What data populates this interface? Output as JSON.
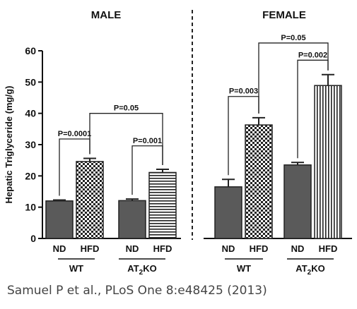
{
  "chart_data": {
    "type": "bar",
    "ylabel": "Hepatic Triglyceride (mg/g)",
    "ylim": [
      0,
      60
    ],
    "yticks": [
      0,
      10,
      20,
      30,
      40,
      50,
      60
    ],
    "panels": [
      {
        "title": "MALE",
        "groups": [
          {
            "label": "WT",
            "bars": [
              {
                "label": "ND",
                "value": 12.0,
                "error": 0.3
              },
              {
                "label": "HFD",
                "value": 24.6,
                "error": 1.0
              }
            ]
          },
          {
            "label": "AT2KO",
            "bars": [
              {
                "label": "ND",
                "value": 12.1,
                "error": 0.5
              },
              {
                "label": "HFD",
                "value": 21.1,
                "error": 1.0
              }
            ]
          }
        ],
        "comparisons": [
          {
            "text": "P=0.0001",
            "from": [
              0,
              0
            ],
            "to": [
              0,
              1
            ],
            "y": 31.8
          },
          {
            "text": "P=0.001",
            "from": [
              1,
              0
            ],
            "to": [
              1,
              1
            ],
            "y": 29.6
          },
          {
            "text": "P=0.05",
            "from": [
              0,
              1
            ],
            "to": [
              1,
              1
            ],
            "y": 40.0
          }
        ]
      },
      {
        "title": "FEMALE",
        "groups": [
          {
            "label": "WT",
            "bars": [
              {
                "label": "ND",
                "value": 16.5,
                "error": 2.4
              },
              {
                "label": "HFD",
                "value": 36.3,
                "error": 2.3
              }
            ]
          },
          {
            "label": "AT2KO",
            "bars": [
              {
                "label": "ND",
                "value": 23.5,
                "error": 0.8
              },
              {
                "label": "HFD",
                "value": 48.9,
                "error": 3.5
              }
            ]
          }
        ],
        "comparisons": [
          {
            "text": "P=0.003",
            "from": [
              0,
              0
            ],
            "to": [
              0,
              1
            ],
            "y": 45.4
          },
          {
            "text": "P=0.002",
            "from": [
              1,
              0
            ],
            "to": [
              1,
              1
            ],
            "y": 57.0
          },
          {
            "text": "P=0.05",
            "from": [
              0,
              1
            ],
            "to": [
              1,
              1
            ],
            "y": 62.5
          }
        ]
      }
    ],
    "citation": "Samuel P et al., PLoS One 8:e48425 (2013)"
  }
}
